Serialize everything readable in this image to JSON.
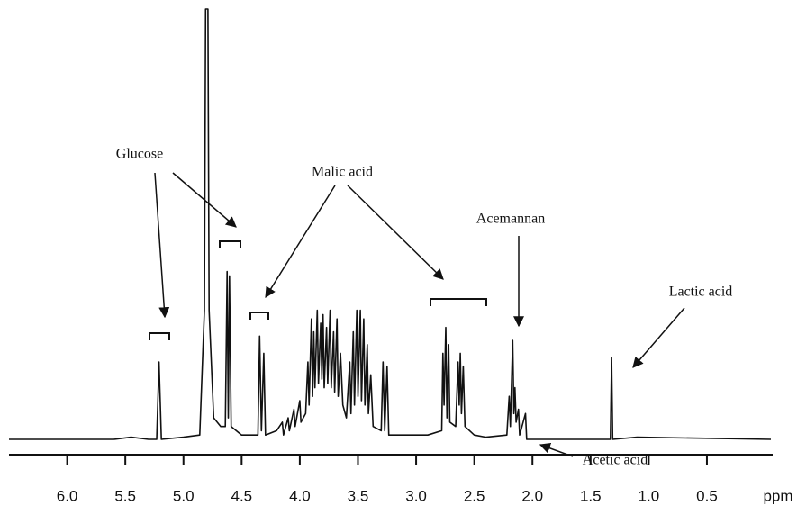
{
  "chart_data": {
    "type": "line",
    "color": "#111111",
    "x_label": "ppm",
    "annotations": [
      "Glucose",
      "Malic acid",
      "Acemannan",
      "Lactic acid",
      "Acetic acid"
    ],
    "xlim": [
      6.5,
      -0.05
    ],
    "ylim": [
      0,
      100
    ],
    "xticks": [
      {
        "value": 6,
        "label": "6.0"
      },
      5.5,
      {
        "value": 5,
        "label": "5.0"
      },
      4.5,
      {
        "value": 4,
        "label": "4.0"
      },
      3.5,
      {
        "value": 3,
        "label": "3.0"
      },
      2.5,
      {
        "value": 2,
        "label": "2.0"
      },
      1.5,
      {
        "value": 1,
        "label": "1.0"
      },
      0.5
    ],
    "x": [
      6.5,
      5.6,
      5.45,
      5.3,
      5.23,
      5.21,
      5.19,
      5.0,
      4.86,
      4.82,
      4.81,
      4.79,
      4.78,
      4.74,
      4.68,
      4.64,
      4.625,
      4.615,
      4.605,
      4.59,
      4.5,
      4.36,
      4.345,
      4.33,
      4.31,
      4.295,
      4.2,
      4.15,
      4.14,
      4.1,
      4.09,
      4.05,
      4.04,
      4.0,
      3.99,
      3.95,
      3.93,
      3.92,
      3.9,
      3.89,
      3.88,
      3.87,
      3.85,
      3.84,
      3.82,
      3.81,
      3.8,
      3.79,
      3.77,
      3.76,
      3.74,
      3.73,
      3.71,
      3.7,
      3.68,
      3.67,
      3.65,
      3.63,
      3.6,
      3.57,
      3.56,
      3.54,
      3.53,
      3.51,
      3.5,
      3.48,
      3.47,
      3.45,
      3.44,
      3.42,
      3.41,
      3.39,
      3.37,
      3.3,
      3.285,
      3.27,
      3.25,
      3.235,
      3.1,
      2.9,
      2.78,
      2.77,
      2.76,
      2.745,
      2.735,
      2.72,
      2.71,
      2.66,
      2.64,
      2.63,
      2.62,
      2.61,
      2.595,
      2.58,
      2.5,
      2.4,
      2.22,
      2.2,
      2.19,
      2.17,
      2.16,
      2.15,
      2.14,
      2.12,
      2.11,
      2.06,
      2.05,
      2.0,
      1.5,
      1.33,
      1.32,
      1.31,
      1.1,
      -0.05
    ],
    "values": [
      0,
      0,
      0.5,
      0,
      0,
      18,
      0,
      0.5,
      1,
      30,
      100,
      100,
      30,
      5,
      3,
      3,
      39,
      5,
      38,
      3,
      1,
      1,
      24,
      2,
      20,
      1,
      2,
      4,
      1,
      5,
      2,
      7,
      3,
      9,
      4,
      6,
      18,
      8,
      28,
      10,
      25,
      12,
      30,
      13,
      27,
      14,
      29,
      12,
      26,
      13,
      30,
      12,
      25,
      11,
      28,
      10,
      20,
      8,
      5,
      18,
      6,
      25,
      8,
      30,
      10,
      30,
      9,
      28,
      8,
      22,
      6,
      15,
      3,
      2,
      18,
      2,
      17,
      1,
      1,
      1,
      2,
      20,
      8,
      26,
      5,
      22,
      4,
      3,
      18,
      8,
      20,
      6,
      17,
      3,
      1,
      0.5,
      1,
      10,
      3,
      23,
      6,
      12,
      4,
      7,
      1,
      6,
      0,
      0,
      0,
      0,
      19,
      0,
      0.5,
      0
    ]
  }
}
